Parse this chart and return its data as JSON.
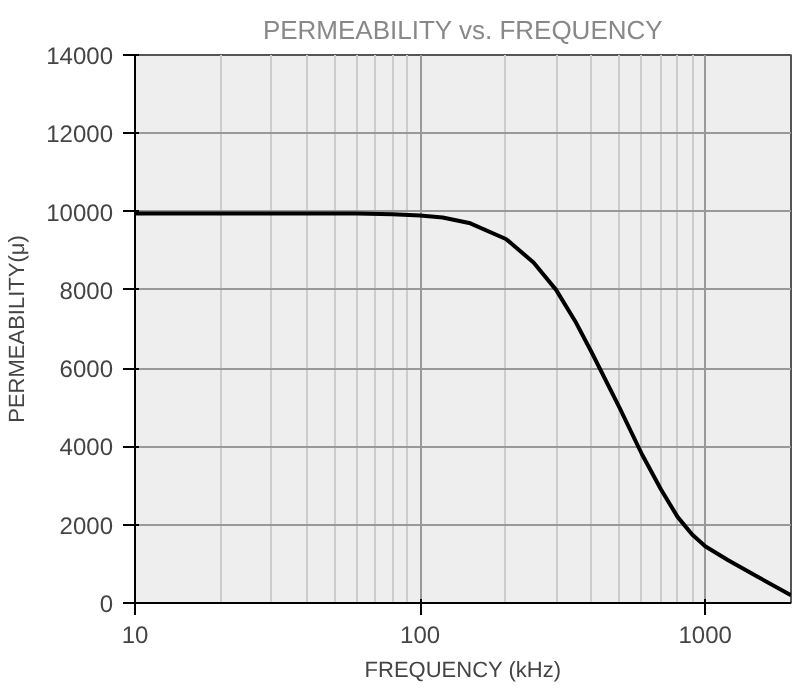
{
  "chart_data": {
    "type": "line",
    "title": "PERMEABILITY vs. FREQUENCY",
    "xlabel": "FREQUENCY (kHz)",
    "ylabel": "PERMEABILITY(μ)",
    "log": "x",
    "xlim": [
      10,
      2000
    ],
    "xticks": [
      10,
      100,
      1000
    ],
    "ylim": [
      0,
      14000
    ],
    "yticks": [
      0,
      2000,
      4000,
      6000,
      8000,
      10000,
      12000,
      14000
    ],
    "grid": true,
    "marker": "none",
    "line_style": "solid",
    "series": [
      {
        "color": "#000000",
        "x": [
          10,
          20,
          40,
          60,
          80,
          100,
          120,
          150,
          200,
          250,
          300,
          350,
          400,
          500,
          600,
          700,
          800,
          900,
          1000,
          1200,
          1500,
          2000
        ],
        "values": [
          9950,
          9950,
          9950,
          9950,
          9930,
          9900,
          9850,
          9700,
          9300,
          8700,
          8000,
          7200,
          6400,
          5000,
          3800,
          2900,
          2200,
          1750,
          1450,
          1100,
          700,
          200
        ]
      }
    ]
  }
}
